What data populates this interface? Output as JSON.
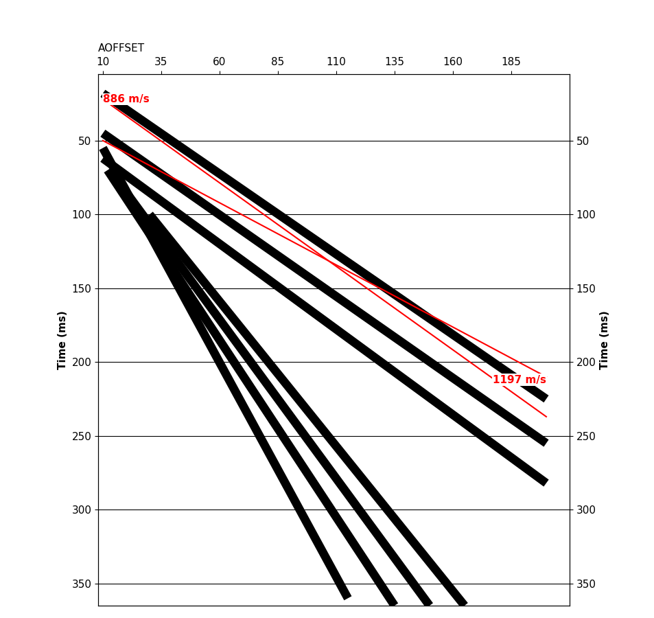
{
  "chart_data": {
    "type": "line",
    "x_label": "AOFFSET",
    "y_label": "Time (ms)",
    "xlim": [
      8,
      210
    ],
    "xticks": [
      10,
      35,
      60,
      85,
      110,
      135,
      160,
      185
    ],
    "ylim": [
      365,
      5
    ],
    "yticks": [
      50,
      100,
      150,
      200,
      250,
      300,
      350
    ],
    "grid": true,
    "series": [
      {
        "type": "event",
        "color": "#000000",
        "x": [
          10,
          200
        ],
        "values": [
          18,
          225
        ]
      },
      {
        "type": "event",
        "color": "#000000",
        "x": [
          10,
          200
        ],
        "values": [
          45,
          255
        ]
      },
      {
        "type": "event",
        "color": "#000000",
        "x": [
          10,
          200
        ],
        "values": [
          62,
          282
        ]
      },
      {
        "type": "event",
        "color": "#000000",
        "x": [
          10,
          115
        ],
        "values": [
          55,
          360
        ]
      },
      {
        "type": "event",
        "color": "#000000",
        "x": [
          12,
          135
        ],
        "values": [
          70,
          365
        ]
      },
      {
        "type": "event",
        "color": "#000000",
        "x": [
          20,
          150
        ],
        "values": [
          85,
          365
        ]
      },
      {
        "type": "event",
        "color": "#000000",
        "x": [
          30,
          165
        ],
        "values": [
          100,
          365
        ]
      },
      {
        "type": "velocity",
        "color": "#ff0000",
        "x": [
          10,
          200
        ],
        "values": [
          22,
          237
        ]
      },
      {
        "type": "velocity",
        "color": "#ff0000",
        "x": [
          10,
          200
        ],
        "values": [
          50,
          210
        ]
      }
    ],
    "annotations": [
      {
        "text": "886 m/s",
        "x": 10,
        "y": 22,
        "color": "#ff0000"
      },
      {
        "text": "1197 m/s",
        "x": 200,
        "y": 212,
        "color": "#ff0000"
      }
    ]
  }
}
